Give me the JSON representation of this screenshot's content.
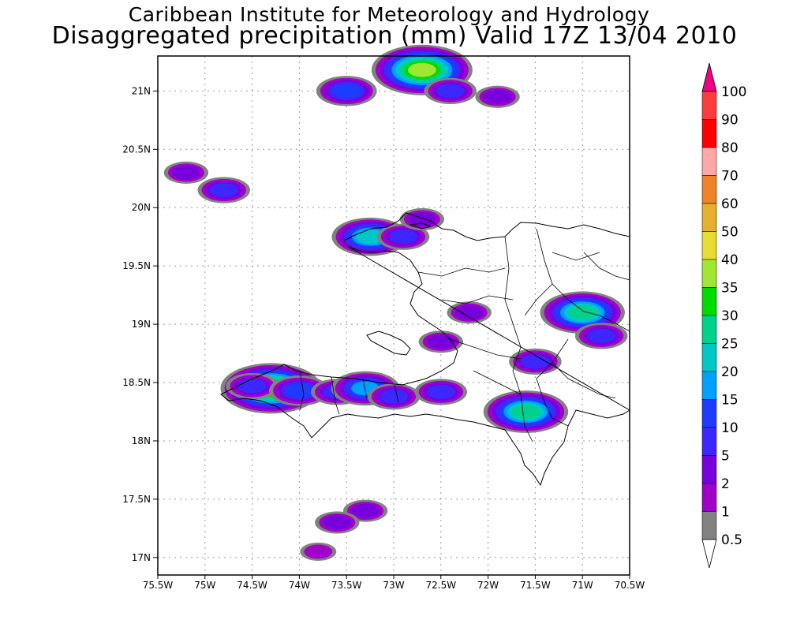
{
  "title": "Caribbean Institute for Meteorology and Hydrology",
  "subtitle": "Disaggregated precipitation (mm) Valid 17Z 13/04 2010",
  "map": {
    "lon_range": [
      -75.5,
      -70.5
    ],
    "lat_range": [
      16.85,
      21.3
    ],
    "lat_ticks": [
      {
        "value": 21,
        "label": "21N"
      },
      {
        "value": 20.5,
        "label": "20.5N"
      },
      {
        "value": 20,
        "label": "20N"
      },
      {
        "value": 19.5,
        "label": "19.5N"
      },
      {
        "value": 19,
        "label": "19N"
      },
      {
        "value": 18.5,
        "label": "18.5N"
      },
      {
        "value": 18,
        "label": "18N"
      },
      {
        "value": 17.5,
        "label": "17.5N"
      },
      {
        "value": 17,
        "label": "17N"
      }
    ],
    "lon_ticks": [
      {
        "value": -75.5,
        "label": "75.5W"
      },
      {
        "value": -75,
        "label": "75W"
      },
      {
        "value": -74.5,
        "label": "74.5W"
      },
      {
        "value": -74,
        "label": "74W"
      },
      {
        "value": -73.5,
        "label": "73.5W"
      },
      {
        "value": -73,
        "label": "73W"
      },
      {
        "value": -72.5,
        "label": "72.5W"
      },
      {
        "value": -72,
        "label": "72W"
      },
      {
        "value": -71.5,
        "label": "71.5W"
      },
      {
        "value": -71,
        "label": "71W"
      },
      {
        "value": -70.5,
        "label": "70.5W"
      }
    ],
    "grid": true,
    "legend_placement": "right"
  },
  "colorbar": {
    "levels": [
      {
        "label": "100",
        "color": "#ff3b3b"
      },
      {
        "label": "90",
        "color": "#ff0000"
      },
      {
        "label": "80",
        "color": "#ffa8a8"
      },
      {
        "label": "70",
        "color": "#f08228"
      },
      {
        "label": "60",
        "color": "#e6af2d"
      },
      {
        "label": "50",
        "color": "#e6dc32"
      },
      {
        "label": "40",
        "color": "#a0e632"
      },
      {
        "label": "35",
        "color": "#00dc00"
      },
      {
        "label": "30",
        "color": "#00d28c"
      },
      {
        "label": "25",
        "color": "#00c8c8"
      },
      {
        "label": "20",
        "color": "#00a0ff"
      },
      {
        "label": "15",
        "color": "#1e3cff"
      },
      {
        "label": "10",
        "color": "#3c28ff"
      },
      {
        "label": "5",
        "color": "#7800dc"
      },
      {
        "label": "2",
        "color": "#a000c8"
      },
      {
        "label": "1",
        "color": "#828282"
      },
      {
        "label": "0.5",
        "color": null
      }
    ],
    "top_arrow_color": "#f00082",
    "bottom_arrow_color": "#ffffff"
  },
  "precip_cells": [
    {
      "lon": -74.3,
      "lat": 18.45,
      "value": 40
    },
    {
      "lon": -74.5,
      "lat": 18.47,
      "value": 10
    },
    {
      "lon": -74.0,
      "lat": 18.43,
      "value": 15
    },
    {
      "lon": -73.6,
      "lat": 18.42,
      "value": 10
    },
    {
      "lon": -73.3,
      "lat": 18.45,
      "value": 20
    },
    {
      "lon": -73.0,
      "lat": 18.38,
      "value": 10
    },
    {
      "lon": -72.5,
      "lat": 18.42,
      "value": 10
    },
    {
      "lon": -71.6,
      "lat": 18.25,
      "value": 30
    },
    {
      "lon": -71.0,
      "lat": 19.1,
      "value": 30
    },
    {
      "lon": -70.8,
      "lat": 18.9,
      "value": 10
    },
    {
      "lon": -71.5,
      "lat": 18.68,
      "value": 10
    },
    {
      "lon": -73.25,
      "lat": 19.75,
      "value": 25
    },
    {
      "lon": -72.9,
      "lat": 19.75,
      "value": 10
    },
    {
      "lon": -72.7,
      "lat": 21.18,
      "value": 40
    },
    {
      "lon": -72.4,
      "lat": 21.0,
      "value": 10
    },
    {
      "lon": -73.5,
      "lat": 21.0,
      "value": 15
    },
    {
      "lon": -75.2,
      "lat": 20.3,
      "value": 5
    },
    {
      "lon": -74.8,
      "lat": 20.15,
      "value": 10
    },
    {
      "lon": -72.5,
      "lat": 18.85,
      "value": 5
    },
    {
      "lon": -71.9,
      "lat": 20.95,
      "value": 5
    },
    {
      "lon": -73.3,
      "lat": 17.4,
      "value": 5
    },
    {
      "lon": -73.6,
      "lat": 17.3,
      "value": 5
    },
    {
      "lon": -73.8,
      "lat": 17.05,
      "value": 2
    },
    {
      "lon": -72.2,
      "lat": 19.1,
      "value": 5
    },
    {
      "lon": -72.7,
      "lat": 19.9,
      "value": 5
    }
  ]
}
